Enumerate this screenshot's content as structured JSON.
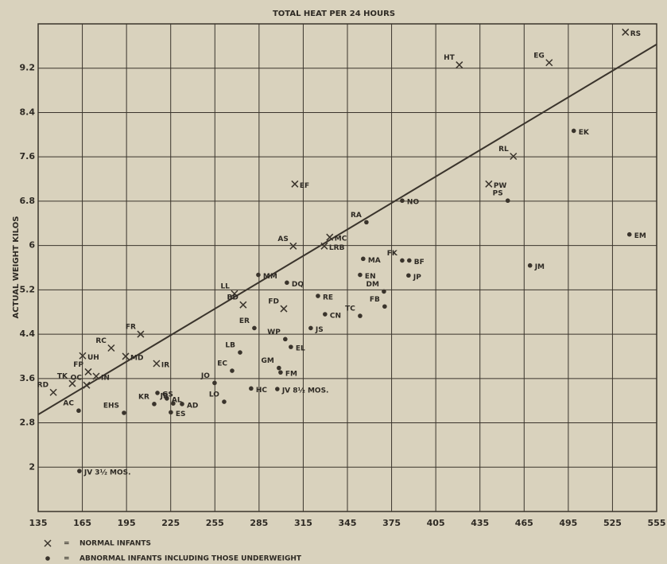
{
  "chart_data": {
    "type": "scatter",
    "title": "TOTAL HEAT PER 24 HOURS",
    "y_label": "ACTUAL WEIGHT KILOS",
    "xlim": [
      135,
      555
    ],
    "xticks": [
      135,
      165,
      195,
      225,
      255,
      285,
      315,
      345,
      375,
      405,
      435,
      465,
      495,
      525,
      555
    ],
    "ylim": [
      1.2,
      10.0
    ],
    "yticks": [
      2.0,
      2.8,
      3.6,
      4.4,
      5.2,
      6.0,
      6.8,
      7.6,
      8.4,
      9.2
    ],
    "grid": true,
    "color": "#3a342c",
    "legend_separator": "=",
    "trend_line": {
      "x": [
        135,
        555
      ],
      "y": [
        2.95,
        9.63
      ]
    },
    "series": [
      {
        "name": "NORMAL INFANTS",
        "marker": "x",
        "labels": [
          "RS",
          "HT",
          "EG",
          "RL",
          "PW",
          "EF",
          "AS",
          "MC",
          "LRB",
          "LL",
          "BD",
          "FD",
          "FR",
          "RC",
          "UH",
          "MD",
          "IR",
          "TK",
          "FP",
          "IN",
          "OC",
          "RD"
        ],
        "x": [
          533.8,
          421,
          482,
          457.7,
          441,
          309.3,
          308.2,
          333,
          329.3,
          268.3,
          274.2,
          301.8,
          204.6,
          184.6,
          165.2,
          194.4,
          215.4,
          158.2,
          169,
          174.4,
          167.9,
          145.3
        ],
        "y": [
          9.85,
          9.26,
          9.3,
          7.61,
          7.11,
          7.11,
          5.99,
          6.15,
          5.99,
          5.13,
          4.93,
          4.86,
          4.4,
          4.15,
          4.01,
          4.0,
          3.87,
          3.51,
          3.72,
          3.64,
          3.48,
          3.35
        ]
      },
      {
        "name": "ABNORMAL INFANTS INCLUDING THOSE UNDERWEIGHT",
        "marker": "dot",
        "labels": [
          "EK",
          "PS",
          "NO",
          "EM",
          "RA",
          "MA",
          "FK",
          "BF",
          "EN",
          "JP",
          "JM",
          "MM",
          "DQ",
          "RE",
          "DM",
          "CN",
          "FB",
          "TC",
          "JS",
          "ER",
          "WP",
          "EL",
          "LB",
          "EC",
          "GM",
          "FM",
          "JO",
          "HC",
          "JV 8½ MOS.",
          "LO",
          "GS",
          "AL",
          "KR",
          "JB",
          "AD",
          "ES",
          "EHS",
          "AC",
          "JV 3½ MOS."
        ],
        "x": [
          498.7,
          453.9,
          382.2,
          536.5,
          357.9,
          355.7,
          382.2,
          387,
          353.6,
          386.5,
          469,
          284.5,
          303.9,
          325,
          369.8,
          329.8,
          370.3,
          353.6,
          320.1,
          281.8,
          302.8,
          306.6,
          272.1,
          266.7,
          298.5,
          299.6,
          254.8,
          279.6,
          297.4,
          261.3,
          216,
          222.4,
          213.8,
          226.7,
          232.7,
          225.1,
          193.3,
          162.5,
          163
        ],
        "y": [
          8.07,
          6.81,
          6.81,
          6.2,
          6.42,
          5.76,
          5.73,
          5.73,
          5.47,
          5.46,
          5.64,
          5.47,
          5.33,
          5.09,
          5.17,
          4.76,
          4.9,
          4.73,
          4.51,
          4.51,
          4.31,
          4.17,
          4.07,
          3.74,
          3.79,
          3.71,
          3.52,
          3.42,
          3.41,
          3.18,
          3.34,
          3.24,
          3.14,
          3.15,
          3.14,
          2.99,
          2.98,
          3.02,
          1.93
        ]
      }
    ]
  }
}
